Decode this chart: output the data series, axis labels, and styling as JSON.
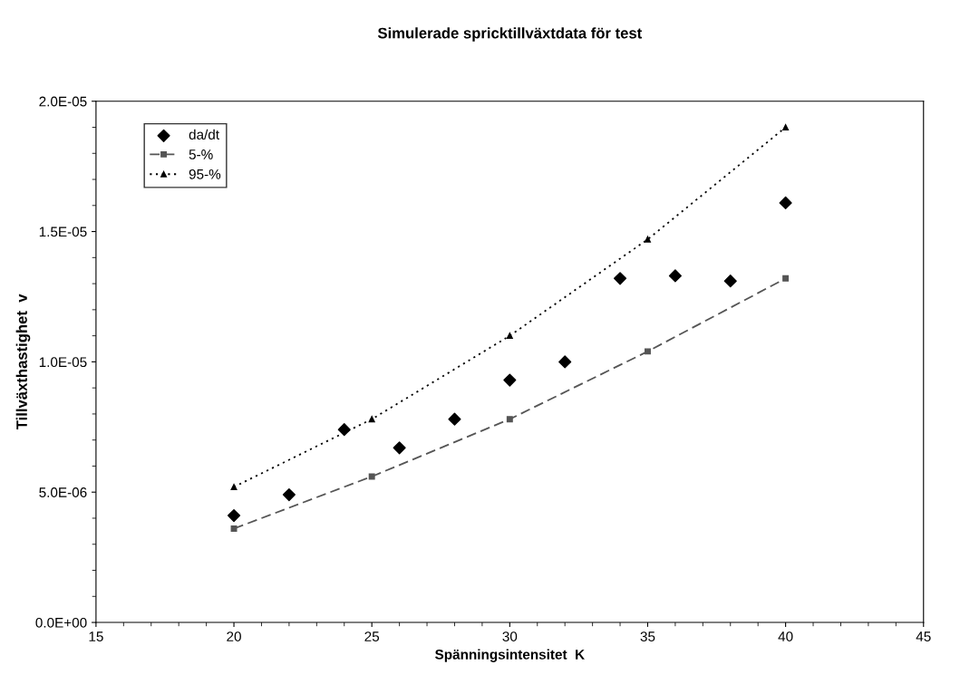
{
  "chart_data": {
    "type": "scatter",
    "title": "Simulerade spricktillväxtdata för test",
    "xlabel": "Spänningsintensitet  K",
    "ylabel": "Tillväxthastighet  v",
    "xlim": [
      15,
      45
    ],
    "xticks": [
      15,
      20,
      25,
      30,
      35,
      40,
      45
    ],
    "ylim": [
      0,
      2e-05
    ],
    "yticks": [
      {
        "value": 0,
        "label": "0.0E+00"
      },
      {
        "value": 5e-06,
        "label": "5.0E-06"
      },
      {
        "value": 1e-05,
        "label": "1.0E-05"
      },
      {
        "value": 1.5e-05,
        "label": "1.5E-05"
      },
      {
        "value": 2e-05,
        "label": "2.0E-05"
      }
    ],
    "legend": "top left",
    "grid": false,
    "series": [
      {
        "name": "da/dt",
        "marker": "diamond",
        "color": "#000000",
        "x": [
          20,
          22,
          24,
          26,
          28,
          30,
          32,
          34,
          36,
          38,
          40
        ],
        "values": [
          4.1e-06,
          4.9e-06,
          7.4e-06,
          6.7e-06,
          7.8e-06,
          9.3e-06,
          1e-05,
          1.32e-05,
          1.33e-05,
          1.31e-05,
          1.61e-05
        ]
      },
      {
        "name": "5-%",
        "type": "line",
        "marker": "square",
        "line_style": "dashed",
        "color": "#555555",
        "x": [
          20,
          25,
          30,
          35,
          40
        ],
        "values": [
          3.6e-06,
          5.6e-06,
          7.8e-06,
          1.04e-05,
          1.32e-05
        ]
      },
      {
        "name": "95-%",
        "type": "line",
        "marker": "triangle",
        "line_style": "dotted",
        "color": "#000000",
        "x": [
          20,
          25,
          30,
          35,
          40
        ],
        "values": [
          5.2e-06,
          7.8e-06,
          1.1e-05,
          1.47e-05,
          1.9e-05
        ]
      }
    ]
  }
}
